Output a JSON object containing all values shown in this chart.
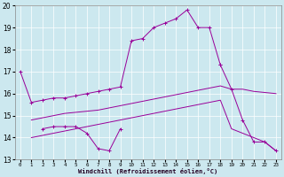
{
  "background_color": "#cce8ef",
  "line_color": "#990099",
  "ylim": [
    13,
    20
  ],
  "yticks": [
    13,
    14,
    15,
    16,
    17,
    18,
    19,
    20
  ],
  "xticks": [
    0,
    1,
    2,
    3,
    4,
    5,
    6,
    7,
    8,
    9,
    10,
    11,
    12,
    13,
    14,
    15,
    16,
    17,
    18,
    19,
    20,
    21,
    22,
    23
  ],
  "xlabel": "Windchill (Refroidissement éolien,°C)",
  "line1_x": [
    0,
    1,
    2,
    3,
    4,
    5,
    6,
    7,
    8,
    9,
    10,
    11,
    12,
    13,
    14,
    15,
    16,
    17,
    18
  ],
  "line1_y": [
    17.0,
    15.6,
    15.7,
    15.8,
    15.8,
    15.9,
    16.0,
    16.1,
    16.2,
    16.3,
    18.4,
    18.5,
    19.0,
    19.2,
    19.4,
    19.8,
    19.0,
    19.0,
    17.3
  ],
  "line2_x": [
    2,
    3,
    4,
    5,
    6,
    7,
    8,
    9
  ],
  "line2_y": [
    14.4,
    14.5,
    14.5,
    14.5,
    14.2,
    13.5,
    13.4,
    14.4
  ],
  "line3_x": [
    1,
    2,
    3,
    4,
    5,
    6,
    7,
    8,
    9,
    10,
    11,
    12,
    13,
    14,
    15,
    16,
    17,
    18,
    19,
    20,
    21,
    22,
    23
  ],
  "line3_y": [
    14.8,
    14.9,
    15.0,
    15.1,
    15.15,
    15.2,
    15.25,
    15.35,
    15.45,
    15.55,
    15.65,
    15.75,
    15.85,
    15.95,
    16.05,
    16.15,
    16.25,
    16.35,
    16.2,
    16.2,
    16.1,
    16.05,
    16.0
  ],
  "line4_x": [
    1,
    2,
    3,
    4,
    5,
    6,
    7,
    8,
    9,
    10,
    11,
    12,
    13,
    14,
    15,
    16,
    17,
    18,
    19,
    20,
    21,
    22,
    23
  ],
  "line4_y": [
    14.0,
    14.1,
    14.2,
    14.3,
    14.4,
    14.5,
    14.6,
    14.7,
    14.8,
    14.9,
    15.0,
    15.1,
    15.2,
    15.3,
    15.4,
    15.5,
    15.6,
    15.7,
    14.4,
    14.2,
    14.0,
    13.8,
    13.4
  ],
  "line5_x": [
    18,
    19,
    20,
    21,
    22,
    23
  ],
  "line5_y": [
    17.3,
    16.2,
    14.8,
    13.8,
    13.8,
    13.4
  ]
}
